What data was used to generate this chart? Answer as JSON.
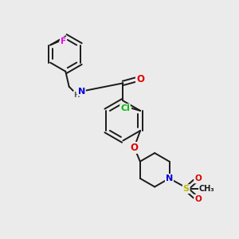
{
  "bg_color": "#ebebeb",
  "bond_color": "#1a1a1a",
  "bond_width": 1.4,
  "atom_colors": {
    "F": "#ee00ee",
    "N": "#0000dd",
    "O": "#dd0000",
    "Cl": "#00bb00",
    "S": "#bbbb00",
    "H": "#555555",
    "C": "#1a1a1a"
  },
  "font_size": 7.5,
  "figsize": [
    3.0,
    3.0
  ],
  "dpi": 100,
  "xlim": [
    0,
    10
  ],
  "ylim": [
    0,
    10
  ]
}
